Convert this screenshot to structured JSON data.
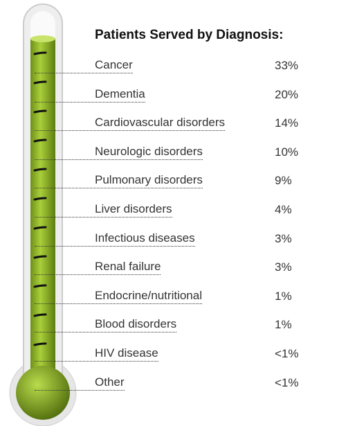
{
  "header": {
    "title": "Patients Served by Diagnosis:"
  },
  "rows": [
    {
      "label": "Cancer",
      "value": "33%"
    },
    {
      "label": "Dementia",
      "value": "20%"
    },
    {
      "label": "Cardiovascular disorders",
      "value": "14%"
    },
    {
      "label": "Neurologic disorders",
      "value": "10%"
    },
    {
      "label": "Pulmonary disorders",
      "value": "9%"
    },
    {
      "label": "Liver disorders",
      "value": "4%"
    },
    {
      "label": "Infectious diseases",
      "value": "3%"
    },
    {
      "label": "Renal failure",
      "value": "3%"
    },
    {
      "label": "Endocrine/nutritional",
      "value": "1%"
    },
    {
      "label": "Blood disorders",
      "value": "1%"
    },
    {
      "label": "HIV disease",
      "value": "<1%"
    },
    {
      "label": "Other",
      "value": "<1%"
    }
  ]
}
